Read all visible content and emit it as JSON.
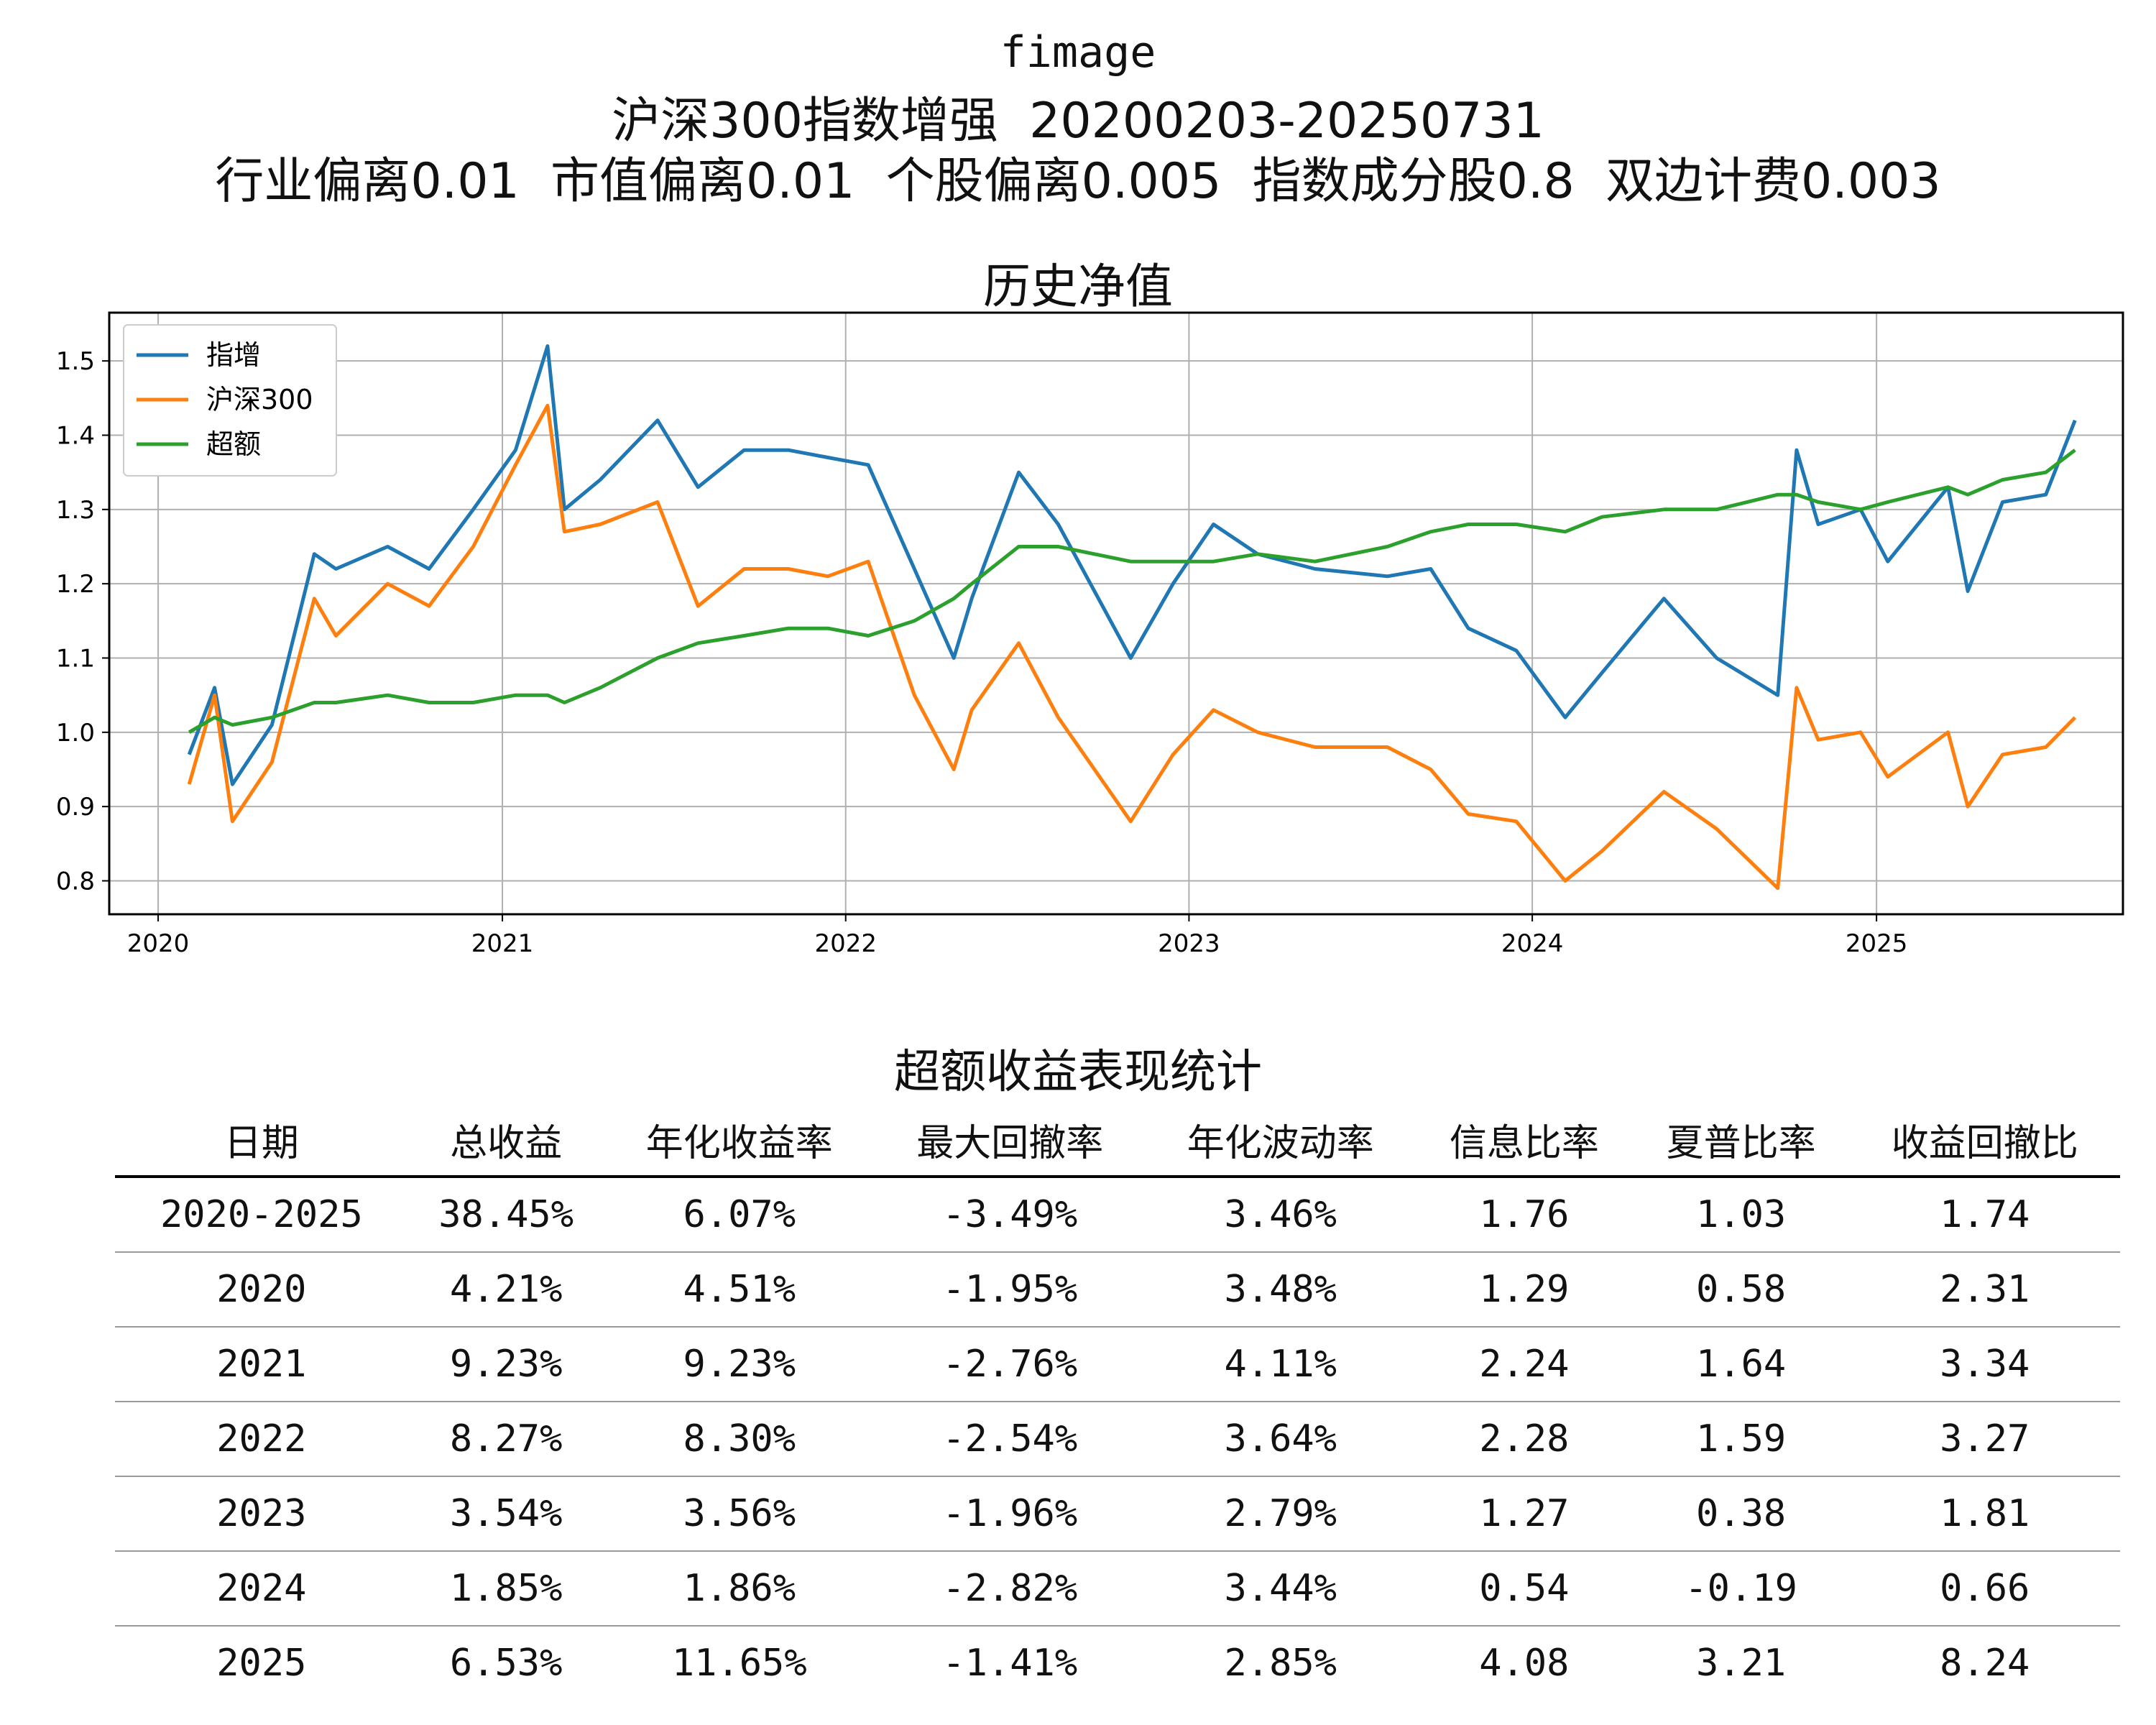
{
  "header": {
    "line1": "fimage",
    "line2": "沪深300指数增强  20200203-20250731",
    "line3": "行业偏离0.01  市值偏离0.01  个股偏离0.005  指数成分股0.8  双边计费0.003"
  },
  "chart_data": {
    "type": "line",
    "title": "历史净值",
    "xlabel": "",
    "ylabel": "",
    "ylim": [
      0.755,
      1.565
    ],
    "xlim": [
      "2019-11-10",
      "2025-09-20"
    ],
    "grid": true,
    "legend_position": "top-left",
    "x_ticks": [
      "2020",
      "2021",
      "2022",
      "2023",
      "2024",
      "2025"
    ],
    "y_ticks": [
      "0.8",
      "0.9",
      "1.0",
      "1.1",
      "1.2",
      "1.3",
      "1.4",
      "1.5"
    ],
    "x": [
      "2020-02-03",
      "2020-03-01",
      "2020-03-20",
      "2020-05-01",
      "2020-06-15",
      "2020-07-08",
      "2020-09-01",
      "2020-10-15",
      "2020-12-01",
      "2021-01-15",
      "2021-02-18",
      "2021-03-08",
      "2021-04-15",
      "2021-06-15",
      "2021-07-28",
      "2021-09-15",
      "2021-11-01",
      "2021-12-13",
      "2022-01-25",
      "2022-03-15",
      "2022-04-26",
      "2022-05-15",
      "2022-07-04",
      "2022-08-15",
      "2022-10-31",
      "2022-12-15",
      "2023-01-27",
      "2023-03-15",
      "2023-05-15",
      "2023-07-31",
      "2023-09-15",
      "2023-10-25",
      "2023-12-15",
      "2024-02-05",
      "2024-03-15",
      "2024-05-20",
      "2024-07-15",
      "2024-09-18",
      "2024-10-08",
      "2024-10-31",
      "2024-12-15",
      "2025-01-13",
      "2025-03-18",
      "2025-04-08",
      "2025-05-15",
      "2025-06-30",
      "2025-07-31"
    ],
    "series": [
      {
        "name": "指增",
        "color": "#1f77b4",
        "values": [
          0.97,
          1.06,
          0.93,
          1.01,
          1.24,
          1.22,
          1.25,
          1.22,
          1.3,
          1.38,
          1.52,
          1.3,
          1.34,
          1.42,
          1.33,
          1.38,
          1.38,
          1.37,
          1.36,
          1.22,
          1.1,
          1.18,
          1.35,
          1.28,
          1.1,
          1.2,
          1.28,
          1.24,
          1.22,
          1.21,
          1.22,
          1.14,
          1.11,
          1.02,
          1.08,
          1.18,
          1.1,
          1.05,
          1.38,
          1.28,
          1.3,
          1.23,
          1.33,
          1.19,
          1.31,
          1.32,
          1.42
        ]
      },
      {
        "name": "沪深300",
        "color": "#ff7f0e",
        "values": [
          0.93,
          1.05,
          0.88,
          0.96,
          1.18,
          1.13,
          1.2,
          1.17,
          1.25,
          1.36,
          1.44,
          1.27,
          1.28,
          1.31,
          1.17,
          1.22,
          1.22,
          1.21,
          1.23,
          1.05,
          0.95,
          1.03,
          1.12,
          1.02,
          0.88,
          0.97,
          1.03,
          1.0,
          0.98,
          0.98,
          0.95,
          0.89,
          0.88,
          0.8,
          0.84,
          0.92,
          0.87,
          0.79,
          1.06,
          0.99,
          1.0,
          0.94,
          1.0,
          0.9,
          0.97,
          0.98,
          1.02
        ]
      },
      {
        "name": "超额",
        "color": "#2ca02c",
        "values": [
          1.0,
          1.02,
          1.01,
          1.02,
          1.04,
          1.04,
          1.05,
          1.04,
          1.04,
          1.05,
          1.05,
          1.04,
          1.06,
          1.1,
          1.12,
          1.13,
          1.14,
          1.14,
          1.13,
          1.15,
          1.18,
          1.2,
          1.25,
          1.25,
          1.23,
          1.23,
          1.23,
          1.24,
          1.23,
          1.25,
          1.27,
          1.28,
          1.28,
          1.27,
          1.29,
          1.3,
          1.3,
          1.32,
          1.32,
          1.31,
          1.3,
          1.31,
          1.33,
          1.32,
          1.34,
          1.35,
          1.38
        ]
      }
    ]
  },
  "table": {
    "title": "超额收益表现统计",
    "columns": [
      "日期",
      "总收益",
      "年化收益率",
      "最大回撤率",
      "年化波动率",
      "信息比率",
      "夏普比率",
      "收益回撤比"
    ],
    "rows": [
      [
        "2020-2025",
        "38.45%",
        "6.07%",
        "-3.49%",
        "3.46%",
        "1.76",
        "1.03",
        "1.74"
      ],
      [
        "2020",
        "4.21%",
        "4.51%",
        "-1.95%",
        "3.48%",
        "1.29",
        "0.58",
        "2.31"
      ],
      [
        "2021",
        "9.23%",
        "9.23%",
        "-2.76%",
        "4.11%",
        "2.24",
        "1.64",
        "3.34"
      ],
      [
        "2022",
        "8.27%",
        "8.30%",
        "-2.54%",
        "3.64%",
        "2.28",
        "1.59",
        "3.27"
      ],
      [
        "2023",
        "3.54%",
        "3.56%",
        "-1.96%",
        "2.79%",
        "1.27",
        "0.38",
        "1.81"
      ],
      [
        "2024",
        "1.85%",
        "1.86%",
        "-2.82%",
        "3.44%",
        "0.54",
        "-0.19",
        "0.66"
      ],
      [
        "2025",
        "6.53%",
        "11.65%",
        "-1.41%",
        "2.85%",
        "4.08",
        "3.21",
        "8.24"
      ]
    ]
  }
}
